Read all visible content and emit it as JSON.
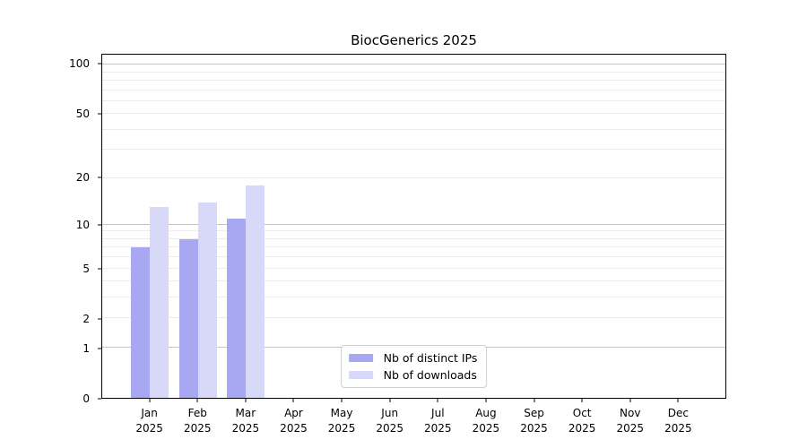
{
  "chart_data": {
    "type": "bar",
    "title": "BiocGenerics 2025",
    "categories": [
      "Jan",
      "Feb",
      "Mar",
      "Apr",
      "May",
      "Jun",
      "Jul",
      "Aug",
      "Sep",
      "Oct",
      "Nov",
      "Dec"
    ],
    "x_year_label": "2025",
    "series": [
      {
        "name": "Nb of distinct IPs",
        "color": "#a8a8f2",
        "values": [
          7,
          8,
          11,
          null,
          null,
          null,
          null,
          null,
          null,
          null,
          null,
          null
        ]
      },
      {
        "name": "Nb of downloads",
        "color": "#d8d8f8",
        "values": [
          13,
          14,
          18,
          null,
          null,
          null,
          null,
          null,
          null,
          null,
          null,
          null
        ]
      }
    ],
    "y_scale": "log1p",
    "y_axis_max": 115,
    "y_tick_labels": [
      0,
      1,
      2,
      5,
      10,
      20,
      50,
      100
    ],
    "y_major_gridlines": [
      1,
      10,
      100
    ],
    "y_minor_gridlines": [
      2,
      3,
      4,
      5,
      6,
      7,
      8,
      9,
      20,
      30,
      40,
      50,
      60,
      70,
      80,
      90
    ],
    "legend_position": "lower center",
    "grid": true,
    "colors": {
      "background": "#ffffff",
      "spine": "#000000",
      "major_grid": "#c3c3c3",
      "minor_grid": "#ebebeb",
      "text": "#000000"
    }
  }
}
